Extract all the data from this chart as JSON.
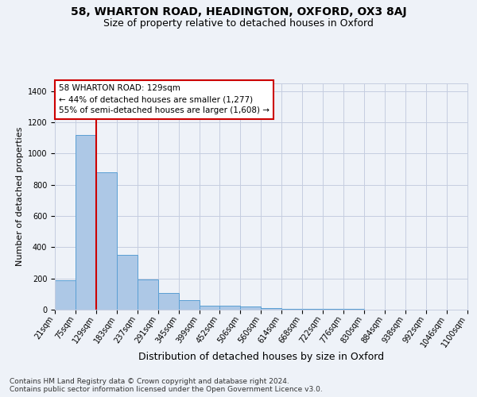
{
  "title1": "58, WHARTON ROAD, HEADINGTON, OXFORD, OX3 8AJ",
  "title2": "Size of property relative to detached houses in Oxford",
  "xlabel": "Distribution of detached houses by size in Oxford",
  "ylabel": "Number of detached properties",
  "footer": "Contains HM Land Registry data © Crown copyright and database right 2024.\nContains public sector information licensed under the Open Government Licence v3.0.",
  "bin_edges": [
    21,
    75,
    129,
    183,
    237,
    291,
    345,
    399,
    452,
    506,
    560,
    614,
    668,
    722,
    776,
    830,
    884,
    938,
    992,
    1046,
    1100
  ],
  "bar_heights": [
    190,
    1120,
    880,
    350,
    195,
    105,
    60,
    25,
    25,
    20,
    10,
    5,
    5,
    3,
    3,
    2,
    2,
    2,
    1,
    1
  ],
  "bar_color": "#adc8e6",
  "bar_edge_color": "#5a9fd4",
  "property_size": 129,
  "annotation_line1": "58 WHARTON ROAD: 129sqm",
  "annotation_line2": "← 44% of detached houses are smaller (1,277)",
  "annotation_line3": "55% of semi-detached houses are larger (1,608) →",
  "annotation_box_color": "#ffffff",
  "annotation_border_color": "#cc0000",
  "vline_color": "#cc0000",
  "ylim": [
    0,
    1450
  ],
  "yticks": [
    0,
    200,
    400,
    600,
    800,
    1000,
    1200,
    1400
  ],
  "background_color": "#eef2f8",
  "plot_background": "#eef2f8",
  "grid_color": "#c5cde0",
  "title1_fontsize": 10,
  "title2_fontsize": 9,
  "xlabel_fontsize": 9,
  "ylabel_fontsize": 8,
  "tick_fontsize": 7,
  "annotation_fontsize": 7.5,
  "footer_fontsize": 6.5
}
